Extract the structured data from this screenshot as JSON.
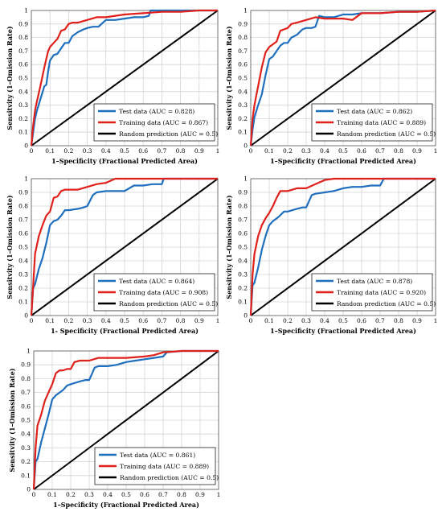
{
  "chart_data": [
    {
      "type": "line",
      "xlabel": "1–Specificity (Fractional Predicted Area)",
      "ylabel": "Sensitvity (1–Omission Rate)",
      "xlim": [
        0,
        1
      ],
      "ylim": [
        0,
        1
      ],
      "x_ticks": [
        "0",
        "0.1",
        "0.2",
        "0.3",
        "0.4",
        "0.5",
        "0.6",
        "0.7",
        "0.8",
        "0.9",
        "1"
      ],
      "y_ticks": [
        "0",
        "0.1",
        "0.2",
        "0.3",
        "0.4",
        "0.5",
        "0.6",
        "0.7",
        "0.8",
        "0.9",
        "1"
      ],
      "grid": true,
      "legend": "lower-right",
      "series": [
        {
          "name": "Test data (AUC = 0.828)",
          "color": "#1f6fbf",
          "x": [
            0,
            0.01,
            0.02,
            0.03,
            0.05,
            0.07,
            0.08,
            0.09,
            0.1,
            0.12,
            0.14,
            0.16,
            0.18,
            0.2,
            0.22,
            0.25,
            0.28,
            0.3,
            0.33,
            0.36,
            0.4,
            0.45,
            0.5,
            0.55,
            0.6,
            0.63,
            0.64,
            0.66,
            0.7,
            0.8,
            0.9,
            1
          ],
          "y": [
            0,
            0.1,
            0.2,
            0.26,
            0.35,
            0.44,
            0.45,
            0.55,
            0.63,
            0.67,
            0.68,
            0.72,
            0.76,
            0.76,
            0.81,
            0.84,
            0.86,
            0.87,
            0.88,
            0.88,
            0.93,
            0.93,
            0.94,
            0.95,
            0.95,
            0.96,
            1.0,
            1.0,
            1.0,
            1.0,
            1.0,
            1.0
          ]
        },
        {
          "name": "Training data (AUC = 0.867)",
          "color": "#e0201b",
          "x": [
            0,
            0.01,
            0.02,
            0.03,
            0.05,
            0.07,
            0.09,
            0.1,
            0.12,
            0.14,
            0.16,
            0.18,
            0.2,
            0.22,
            0.25,
            0.3,
            0.35,
            0.4,
            0.5,
            0.6,
            0.7,
            0.8,
            0.9,
            1
          ],
          "y": [
            0,
            0.15,
            0.26,
            0.33,
            0.45,
            0.58,
            0.7,
            0.73,
            0.76,
            0.79,
            0.85,
            0.86,
            0.9,
            0.91,
            0.91,
            0.93,
            0.95,
            0.95,
            0.97,
            0.98,
            0.99,
            0.99,
            1.0,
            1.0
          ]
        },
        {
          "name": "Random prediction (AUC = 0.5)",
          "color": "#000000",
          "x": [
            0,
            1
          ],
          "y": [
            0,
            1
          ]
        }
      ]
    },
    {
      "type": "line",
      "xlabel": "1–Specificity (Fractional Predicted Area)",
      "ylabel": "Sensitvity (1–Omission Rate)",
      "xlim": [
        0,
        1
      ],
      "ylim": [
        0,
        1
      ],
      "x_ticks": [
        "0",
        "0.1",
        "0.2",
        "0.3",
        "0.4",
        "0.5",
        "0.6",
        "0.7",
        "0.8",
        "0.9",
        "1"
      ],
      "y_ticks": [
        "0",
        "0.1",
        "0.2",
        "0.3",
        "0.4",
        "0.5",
        "0.6",
        "0.7",
        "0.8",
        "0.9",
        "1"
      ],
      "grid": true,
      "legend": "lower-right",
      "series": [
        {
          "name": "Test data (AUC = 0.862)",
          "color": "#1f6fbf",
          "x": [
            0,
            0.01,
            0.02,
            0.04,
            0.06,
            0.08,
            0.1,
            0.12,
            0.14,
            0.16,
            0.18,
            0.2,
            0.22,
            0.25,
            0.28,
            0.3,
            0.33,
            0.35,
            0.37,
            0.4,
            0.45,
            0.5,
            0.55,
            0.6,
            0.65,
            0.7,
            0.8,
            0.9,
            1
          ],
          "y": [
            0,
            0.12,
            0.21,
            0.3,
            0.38,
            0.52,
            0.64,
            0.66,
            0.7,
            0.74,
            0.76,
            0.76,
            0.8,
            0.82,
            0.86,
            0.87,
            0.87,
            0.88,
            0.96,
            0.95,
            0.95,
            0.97,
            0.97,
            0.98,
            0.98,
            0.98,
            0.99,
            0.99,
            1.0
          ]
        },
        {
          "name": "Training data (AUC = 0.889)",
          "color": "#e0201b",
          "x": [
            0,
            0.01,
            0.02,
            0.04,
            0.06,
            0.08,
            0.1,
            0.12,
            0.14,
            0.16,
            0.18,
            0.2,
            0.22,
            0.25,
            0.3,
            0.35,
            0.4,
            0.5,
            0.55,
            0.6,
            0.7,
            0.8,
            0.9,
            1
          ],
          "y": [
            0,
            0.2,
            0.3,
            0.44,
            0.58,
            0.69,
            0.73,
            0.75,
            0.77,
            0.85,
            0.86,
            0.87,
            0.9,
            0.91,
            0.93,
            0.95,
            0.94,
            0.94,
            0.93,
            0.98,
            0.98,
            0.99,
            0.99,
            1.0
          ]
        },
        {
          "name": "Random prediction (AUC = 0.5)",
          "color": "#000000",
          "x": [
            0,
            1
          ],
          "y": [
            0,
            1
          ]
        }
      ]
    },
    {
      "type": "line",
      "xlabel": "1- Specificity (Fractional Predicted Area)",
      "ylabel": "Sensitvity (1–Omission Rate)",
      "xlim": [
        0,
        1
      ],
      "ylim": [
        0,
        1
      ],
      "x_ticks": [
        "0",
        "0.1",
        "0.2",
        "0.3",
        "0.4",
        "0.5",
        "0.6",
        "0.7",
        "0.8",
        "0.9",
        "1"
      ],
      "y_ticks": [
        "0",
        "0.1",
        "0.2",
        "0.3",
        "0.4",
        "0.5",
        "0.6",
        "0.7",
        "0.8",
        "0.9",
        "1"
      ],
      "grid": true,
      "legend": "lower-right",
      "series": [
        {
          "name": "Test data (AUC = 0.864)",
          "color": "#1f6fbf",
          "x": [
            0,
            0.01,
            0.02,
            0.04,
            0.06,
            0.08,
            0.1,
            0.12,
            0.14,
            0.16,
            0.18,
            0.2,
            0.25,
            0.28,
            0.3,
            0.33,
            0.35,
            0.4,
            0.5,
            0.55,
            0.6,
            0.65,
            0.7,
            0.71,
            0.8,
            0.9,
            1
          ],
          "y": [
            0,
            0.2,
            0.23,
            0.34,
            0.42,
            0.53,
            0.66,
            0.69,
            0.7,
            0.73,
            0.77,
            0.77,
            0.78,
            0.79,
            0.8,
            0.88,
            0.9,
            0.91,
            0.91,
            0.95,
            0.95,
            0.96,
            0.96,
            1.0,
            1.0,
            1.0,
            1.0
          ]
        },
        {
          "name": "Training data (AUC = 0.908)",
          "color": "#e0201b",
          "x": [
            0,
            0.01,
            0.02,
            0.04,
            0.06,
            0.08,
            0.1,
            0.12,
            0.14,
            0.16,
            0.18,
            0.2,
            0.25,
            0.3,
            0.35,
            0.4,
            0.45,
            0.5,
            0.6,
            0.7,
            0.8,
            0.9,
            1
          ],
          "y": [
            0,
            0.22,
            0.45,
            0.58,
            0.66,
            0.73,
            0.76,
            0.86,
            0.87,
            0.91,
            0.92,
            0.92,
            0.92,
            0.94,
            0.96,
            0.97,
            1.0,
            1.0,
            1.0,
            1.0,
            1.0,
            1.0,
            1.0
          ]
        },
        {
          "name": "Random prediction (AUC = 0.5)",
          "color": "#000000",
          "x": [
            0,
            1
          ],
          "y": [
            0,
            1
          ]
        }
      ]
    },
    {
      "type": "line",
      "xlabel": "1–Specificity (Fractional Predicted Area)",
      "ylabel": "Sensitvity (1–Omission Rate)",
      "xlim": [
        0,
        1
      ],
      "ylim": [
        0,
        1
      ],
      "x_ticks": [
        "0",
        "0.1",
        "0.2",
        "0.3",
        "0.4",
        "0.5",
        "0.6",
        "0.7",
        "0.8",
        "0.9",
        "1"
      ],
      "y_ticks": [
        "0",
        "0.1",
        "0.2",
        "0.3",
        "0.4",
        "0.5",
        "0.6",
        "0.7",
        "0.8",
        "0.9",
        "1"
      ],
      "grid": true,
      "legend": "lower-right",
      "series": [
        {
          "name": "Test data (AUC = 0.878)",
          "color": "#1f6fbf",
          "x": [
            0,
            0.01,
            0.02,
            0.04,
            0.06,
            0.08,
            0.1,
            0.12,
            0.15,
            0.18,
            0.2,
            0.25,
            0.28,
            0.3,
            0.33,
            0.35,
            0.4,
            0.45,
            0.5,
            0.55,
            0.6,
            0.65,
            0.7,
            0.72,
            0.8,
            0.9,
            1
          ],
          "y": [
            0,
            0.22,
            0.24,
            0.35,
            0.48,
            0.58,
            0.66,
            0.69,
            0.72,
            0.76,
            0.76,
            0.78,
            0.79,
            0.79,
            0.88,
            0.89,
            0.9,
            0.91,
            0.93,
            0.94,
            0.94,
            0.95,
            0.95,
            1.0,
            1.0,
            1.0,
            1.0
          ]
        },
        {
          "name": "Training data (AUC = 0.920)",
          "color": "#e0201b",
          "x": [
            0,
            0.01,
            0.02,
            0.04,
            0.06,
            0.08,
            0.1,
            0.12,
            0.14,
            0.16,
            0.18,
            0.2,
            0.25,
            0.3,
            0.35,
            0.4,
            0.45,
            0.5,
            0.6,
            0.7,
            0.8,
            0.9,
            1
          ],
          "y": [
            0,
            0.3,
            0.45,
            0.58,
            0.66,
            0.71,
            0.75,
            0.8,
            0.86,
            0.91,
            0.91,
            0.91,
            0.93,
            0.93,
            0.96,
            0.99,
            1.0,
            1.0,
            1.0,
            1.0,
            1.0,
            1.0,
            1.0
          ]
        },
        {
          "name": "Random prediction (AUC = 0.5)",
          "color": "#000000",
          "x": [
            0,
            1
          ],
          "y": [
            0,
            1
          ]
        }
      ]
    },
    {
      "type": "line",
      "xlabel": "1–Specificity (Fractional Predicted Area)",
      "ylabel": "Sensitvity (1–Omission Rate)",
      "xlim": [
        0,
        1
      ],
      "ylim": [
        0,
        1
      ],
      "x_ticks": [
        "0",
        "0.1",
        "0.2",
        "0.3",
        "0.4",
        "0.5",
        "0.6",
        "0.7",
        "0.8",
        "0.9",
        "1"
      ],
      "y_ticks": [
        "0",
        "0.1",
        "0.2",
        "0.3",
        "0.4",
        "0.5",
        "0.6",
        "0.7",
        "0.8",
        "0.9",
        "1"
      ],
      "grid": true,
      "legend": "lower-right",
      "series": [
        {
          "name": "Test data (AUC = 0.861)",
          "color": "#1f6fbf",
          "x": [
            0,
            0.01,
            0.02,
            0.04,
            0.06,
            0.08,
            0.1,
            0.12,
            0.14,
            0.16,
            0.18,
            0.2,
            0.25,
            0.28,
            0.3,
            0.33,
            0.35,
            0.4,
            0.45,
            0.5,
            0.55,
            0.6,
            0.65,
            0.7,
            0.72,
            0.8,
            0.9,
            1
          ],
          "y": [
            0,
            0.2,
            0.22,
            0.34,
            0.44,
            0.54,
            0.65,
            0.68,
            0.7,
            0.72,
            0.75,
            0.76,
            0.78,
            0.79,
            0.79,
            0.88,
            0.89,
            0.89,
            0.9,
            0.92,
            0.93,
            0.94,
            0.95,
            0.96,
            0.99,
            1.0,
            1.0,
            1.0
          ]
        },
        {
          "name": "Training data (AUC = 0.889)",
          "color": "#e0201b",
          "x": [
            0,
            0.01,
            0.02,
            0.04,
            0.06,
            0.08,
            0.1,
            0.12,
            0.14,
            0.16,
            0.18,
            0.2,
            0.22,
            0.25,
            0.3,
            0.35,
            0.4,
            0.5,
            0.6,
            0.65,
            0.7,
            0.8,
            0.9,
            1
          ],
          "y": [
            0,
            0.3,
            0.46,
            0.54,
            0.64,
            0.7,
            0.76,
            0.84,
            0.86,
            0.86,
            0.87,
            0.87,
            0.92,
            0.93,
            0.93,
            0.95,
            0.95,
            0.95,
            0.96,
            0.97,
            0.99,
            1.0,
            1.0,
            1.0
          ]
        },
        {
          "name": "Random prediction (AUC = 0.5)",
          "color": "#000000",
          "x": [
            0,
            1
          ],
          "y": [
            0,
            1
          ]
        }
      ]
    }
  ]
}
